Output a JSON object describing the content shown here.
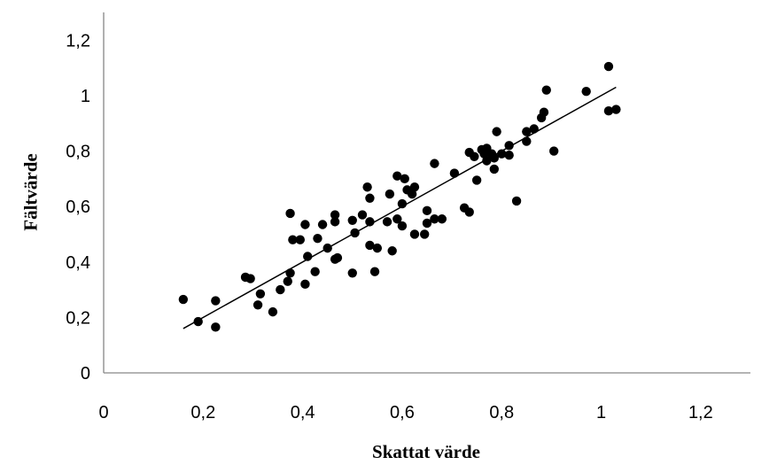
{
  "chart_data": {
    "type": "scatter",
    "title": "",
    "xlabel": "Skattat värde",
    "ylabel": "Fältvärde",
    "xlim": [
      0,
      1.3
    ],
    "ylim": [
      0,
      1.3
    ],
    "x_ticks": [
      "0",
      "0,2",
      "0,4",
      "0,6",
      "0,8",
      "1",
      "1,2"
    ],
    "y_ticks": [
      "0",
      "0,2",
      "0,4",
      "0,6",
      "0,8",
      "1",
      "1,2"
    ],
    "x_tick_values": [
      0,
      0.2,
      0.4,
      0.6,
      0.8,
      1.0,
      1.2
    ],
    "y_tick_values": [
      0,
      0.2,
      0.4,
      0.6,
      0.8,
      1.0,
      1.2
    ],
    "grid": false,
    "legend": "none",
    "marker_color": "#000000",
    "trendline": {
      "type": "linear",
      "x": [
        0.16,
        1.03
      ],
      "y": [
        0.16,
        1.03
      ],
      "color": "#000000"
    },
    "points": [
      [
        0.16,
        0.265
      ],
      [
        0.19,
        0.185
      ],
      [
        0.225,
        0.26
      ],
      [
        0.225,
        0.165
      ],
      [
        0.285,
        0.345
      ],
      [
        0.295,
        0.34
      ],
      [
        0.31,
        0.245
      ],
      [
        0.315,
        0.285
      ],
      [
        0.34,
        0.22
      ],
      [
        0.355,
        0.3
      ],
      [
        0.37,
        0.33
      ],
      [
        0.375,
        0.575
      ],
      [
        0.38,
        0.48
      ],
      [
        0.375,
        0.36
      ],
      [
        0.395,
        0.48
      ],
      [
        0.405,
        0.535
      ],
      [
        0.41,
        0.42
      ],
      [
        0.405,
        0.32
      ],
      [
        0.425,
        0.365
      ],
      [
        0.43,
        0.485
      ],
      [
        0.44,
        0.535
      ],
      [
        0.45,
        0.45
      ],
      [
        0.465,
        0.545
      ],
      [
        0.465,
        0.41
      ],
      [
        0.465,
        0.57
      ],
      [
        0.47,
        0.415
      ],
      [
        0.5,
        0.55
      ],
      [
        0.5,
        0.36
      ],
      [
        0.505,
        0.505
      ],
      [
        0.52,
        0.57
      ],
      [
        0.53,
        0.67
      ],
      [
        0.535,
        0.545
      ],
      [
        0.535,
        0.63
      ],
      [
        0.535,
        0.46
      ],
      [
        0.545,
        0.365
      ],
      [
        0.55,
        0.45
      ],
      [
        0.57,
        0.545
      ],
      [
        0.575,
        0.645
      ],
      [
        0.58,
        0.44
      ],
      [
        0.59,
        0.71
      ],
      [
        0.59,
        0.555
      ],
      [
        0.6,
        0.53
      ],
      [
        0.6,
        0.61
      ],
      [
        0.605,
        0.7
      ],
      [
        0.61,
        0.66
      ],
      [
        0.62,
        0.645
      ],
      [
        0.625,
        0.67
      ],
      [
        0.625,
        0.5
      ],
      [
        0.645,
        0.5
      ],
      [
        0.65,
        0.585
      ],
      [
        0.65,
        0.54
      ],
      [
        0.665,
        0.755
      ],
      [
        0.665,
        0.555
      ],
      [
        0.68,
        0.555
      ],
      [
        0.705,
        0.72
      ],
      [
        0.725,
        0.595
      ],
      [
        0.735,
        0.58
      ],
      [
        0.735,
        0.795
      ],
      [
        0.745,
        0.78
      ],
      [
        0.75,
        0.695
      ],
      [
        0.76,
        0.805
      ],
      [
        0.765,
        0.79
      ],
      [
        0.77,
        0.81
      ],
      [
        0.77,
        0.765
      ],
      [
        0.78,
        0.79
      ],
      [
        0.785,
        0.735
      ],
      [
        0.785,
        0.775
      ],
      [
        0.79,
        0.87
      ],
      [
        0.8,
        0.79
      ],
      [
        0.815,
        0.82
      ],
      [
        0.815,
        0.785
      ],
      [
        0.83,
        0.62
      ],
      [
        0.85,
        0.835
      ],
      [
        0.85,
        0.87
      ],
      [
        0.865,
        0.88
      ],
      [
        0.88,
        0.92
      ],
      [
        0.885,
        0.94
      ],
      [
        0.89,
        1.02
      ],
      [
        0.905,
        0.8
      ],
      [
        0.97,
        1.015
      ],
      [
        1.015,
        1.105
      ],
      [
        1.015,
        0.945
      ],
      [
        1.03,
        0.95
      ]
    ]
  }
}
